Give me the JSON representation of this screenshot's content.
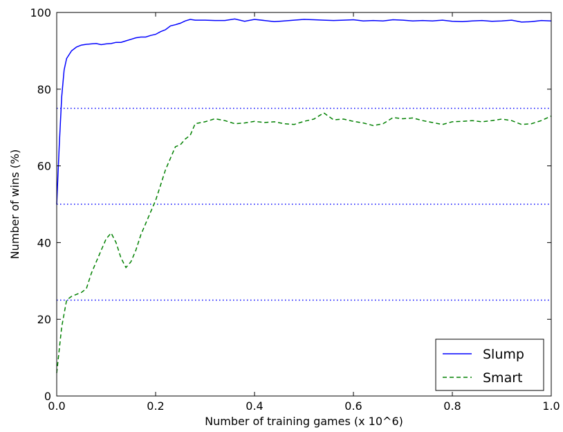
{
  "chart_data": {
    "type": "line",
    "title": "",
    "xlabel": "Number of training games (x 10^6)",
    "ylabel": "Number of wins (%)",
    "xlim": [
      0,
      1
    ],
    "ylim": [
      0,
      100
    ],
    "xticks": [
      "0.0",
      "0.2",
      "0.4",
      "0.6",
      "0.8",
      "1.0"
    ],
    "yticks": [
      "0",
      "20",
      "40",
      "60",
      "80",
      "100"
    ],
    "grid": false,
    "legend_position": "bottom-right",
    "reference_lines": [
      {
        "y": 25,
        "color": "#0000ff",
        "style": "dotted"
      },
      {
        "y": 50,
        "color": "#0000ff",
        "style": "dotted"
      },
      {
        "y": 75,
        "color": "#0000ff",
        "style": "dotted"
      }
    ],
    "series": [
      {
        "name": "Slump",
        "color": "#0000ff",
        "style": "solid",
        "points": [
          [
            0.0,
            50
          ],
          [
            0.005,
            65
          ],
          [
            0.01,
            78
          ],
          [
            0.015,
            85
          ],
          [
            0.02,
            88
          ],
          [
            0.03,
            90
          ],
          [
            0.04,
            91
          ],
          [
            0.05,
            91.5
          ],
          [
            0.06,
            91.7
          ],
          [
            0.07,
            91.8
          ],
          [
            0.08,
            91.9
          ],
          [
            0.09,
            91.6
          ],
          [
            0.1,
            91.8
          ],
          [
            0.11,
            91.9
          ],
          [
            0.12,
            92.2
          ],
          [
            0.13,
            92.2
          ],
          [
            0.14,
            92.6
          ],
          [
            0.15,
            93.0
          ],
          [
            0.16,
            93.4
          ],
          [
            0.17,
            93.6
          ],
          [
            0.18,
            93.6
          ],
          [
            0.19,
            94.0
          ],
          [
            0.2,
            94.3
          ],
          [
            0.21,
            95.0
          ],
          [
            0.22,
            95.5
          ],
          [
            0.23,
            96.5
          ],
          [
            0.24,
            96.8
          ],
          [
            0.25,
            97.2
          ],
          [
            0.26,
            97.8
          ],
          [
            0.27,
            98.2
          ],
          [
            0.28,
            98.0
          ],
          [
            0.3,
            98.0
          ],
          [
            0.32,
            97.9
          ],
          [
            0.34,
            97.9
          ],
          [
            0.36,
            98.3
          ],
          [
            0.38,
            97.7
          ],
          [
            0.4,
            98.2
          ],
          [
            0.42,
            97.9
          ],
          [
            0.44,
            97.6
          ],
          [
            0.46,
            97.8
          ],
          [
            0.48,
            98.0
          ],
          [
            0.5,
            98.2
          ],
          [
            0.52,
            98.1
          ],
          [
            0.54,
            98.0
          ],
          [
            0.56,
            97.9
          ],
          [
            0.58,
            98.0
          ],
          [
            0.6,
            98.1
          ],
          [
            0.62,
            97.8
          ],
          [
            0.64,
            97.9
          ],
          [
            0.66,
            97.8
          ],
          [
            0.68,
            98.1
          ],
          [
            0.7,
            98.0
          ],
          [
            0.72,
            97.8
          ],
          [
            0.74,
            97.9
          ],
          [
            0.76,
            97.8
          ],
          [
            0.78,
            98.0
          ],
          [
            0.8,
            97.7
          ],
          [
            0.82,
            97.6
          ],
          [
            0.84,
            97.8
          ],
          [
            0.86,
            97.9
          ],
          [
            0.88,
            97.7
          ],
          [
            0.9,
            97.8
          ],
          [
            0.92,
            98.0
          ],
          [
            0.94,
            97.5
          ],
          [
            0.96,
            97.6
          ],
          [
            0.98,
            97.9
          ],
          [
            1.0,
            97.8
          ]
        ]
      },
      {
        "name": "Smart",
        "color": "#008000",
        "style": "dashed",
        "points": [
          [
            0.0,
            6
          ],
          [
            0.01,
            18
          ],
          [
            0.02,
            25
          ],
          [
            0.03,
            26
          ],
          [
            0.04,
            26.5
          ],
          [
            0.05,
            27
          ],
          [
            0.06,
            28
          ],
          [
            0.07,
            32
          ],
          [
            0.08,
            35
          ],
          [
            0.09,
            38
          ],
          [
            0.1,
            41
          ],
          [
            0.11,
            42.5
          ],
          [
            0.12,
            40
          ],
          [
            0.13,
            36
          ],
          [
            0.14,
            33.5
          ],
          [
            0.15,
            35
          ],
          [
            0.16,
            38
          ],
          [
            0.17,
            42
          ],
          [
            0.18,
            45
          ],
          [
            0.19,
            48
          ],
          [
            0.2,
            51
          ],
          [
            0.21,
            55
          ],
          [
            0.22,
            59
          ],
          [
            0.23,
            62
          ],
          [
            0.24,
            65
          ],
          [
            0.25,
            65.5
          ],
          [
            0.26,
            67
          ],
          [
            0.27,
            68
          ],
          [
            0.28,
            71
          ],
          [
            0.3,
            71.5
          ],
          [
            0.32,
            72.3
          ],
          [
            0.34,
            71.8
          ],
          [
            0.36,
            71.0
          ],
          [
            0.38,
            71.2
          ],
          [
            0.4,
            71.6
          ],
          [
            0.42,
            71.3
          ],
          [
            0.44,
            71.5
          ],
          [
            0.46,
            71.0
          ],
          [
            0.48,
            70.8
          ],
          [
            0.5,
            71.6
          ],
          [
            0.52,
            72.2
          ],
          [
            0.54,
            73.8
          ],
          [
            0.56,
            72.0
          ],
          [
            0.58,
            72.2
          ],
          [
            0.6,
            71.6
          ],
          [
            0.62,
            71.2
          ],
          [
            0.64,
            70.5
          ],
          [
            0.66,
            71.0
          ],
          [
            0.68,
            72.6
          ],
          [
            0.7,
            72.3
          ],
          [
            0.72,
            72.5
          ],
          [
            0.74,
            71.8
          ],
          [
            0.76,
            71.3
          ],
          [
            0.78,
            70.8
          ],
          [
            0.8,
            71.5
          ],
          [
            0.82,
            71.6
          ],
          [
            0.84,
            71.8
          ],
          [
            0.86,
            71.5
          ],
          [
            0.88,
            71.8
          ],
          [
            0.9,
            72.2
          ],
          [
            0.92,
            71.8
          ],
          [
            0.94,
            70.8
          ],
          [
            0.96,
            71.0
          ],
          [
            0.98,
            71.8
          ],
          [
            1.0,
            73.0
          ]
        ]
      }
    ]
  }
}
